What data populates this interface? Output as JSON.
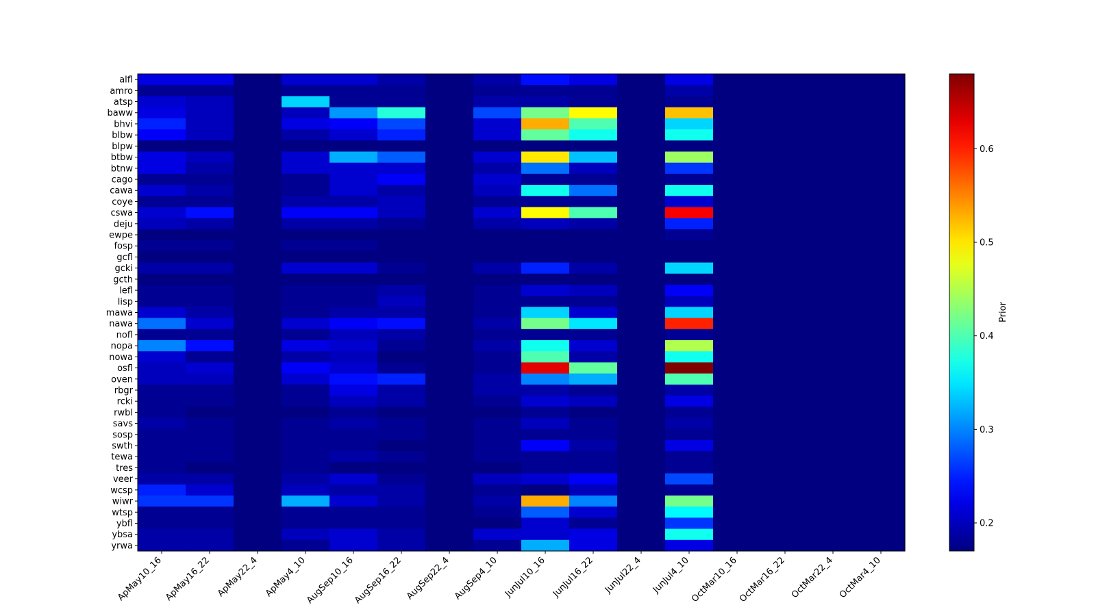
{
  "chart_data": {
    "type": "heatmap",
    "title": "",
    "xlabel": "",
    "ylabel": "",
    "colorbar": {
      "label": "Prior",
      "colormap": "jet",
      "range": [
        0.17,
        0.68
      ],
      "ticks": [
        0.2,
        0.3,
        0.4,
        0.5,
        0.6
      ],
      "tick_labels": [
        "0.2",
        "0.3",
        "0.4",
        "0.5",
        "0.6"
      ]
    },
    "columns": [
      "ApMay10_16",
      "ApMay16_22",
      "ApMay22_4",
      "ApMay4_10",
      "AugSep10_16",
      "AugSep16_22",
      "AugSep22_4",
      "AugSep4_10",
      "JunJul10_16",
      "JunJul16_22",
      "JunJul22_4",
      "JunJul4_10",
      "OctMar10_16",
      "OctMar16_22",
      "OctMar22_4",
      "OctMar4_10"
    ],
    "rows": [
      "alfl",
      "amro",
      "atsp",
      "baww",
      "bhvi",
      "blbw",
      "blpw",
      "btbw",
      "btnw",
      "cago",
      "cawa",
      "coye",
      "cswa",
      "deju",
      "ewpe",
      "fosp",
      "gcfl",
      "gcki",
      "gcth",
      "lefl",
      "lisp",
      "mawa",
      "nawa",
      "nofl",
      "nopa",
      "nowa",
      "osfl",
      "oven",
      "rbgr",
      "rcki",
      "rwbl",
      "savs",
      "sosp",
      "swth",
      "tewa",
      "tres",
      "veer",
      "wcsp",
      "wiwr",
      "wtsp",
      "ybfl",
      "ybsa",
      "yrwa"
    ],
    "values": [
      [
        0.22,
        0.22,
        0.17,
        0.21,
        0.21,
        0.19,
        0.17,
        0.19,
        0.24,
        0.22,
        0.17,
        0.22,
        0.17,
        0.17,
        0.17,
        0.17
      ],
      [
        0.18,
        0.18,
        0.17,
        0.18,
        0.18,
        0.18,
        0.17,
        0.18,
        0.18,
        0.18,
        0.17,
        0.19,
        0.17,
        0.17,
        0.17,
        0.17
      ],
      [
        0.21,
        0.2,
        0.17,
        0.34,
        0.18,
        0.18,
        0.17,
        0.19,
        0.19,
        0.18,
        0.17,
        0.18,
        0.17,
        0.17,
        0.17,
        0.17
      ],
      [
        0.22,
        0.2,
        0.17,
        0.2,
        0.31,
        0.38,
        0.17,
        0.27,
        0.42,
        0.49,
        0.17,
        0.52,
        0.17,
        0.17,
        0.17,
        0.17
      ],
      [
        0.25,
        0.2,
        0.17,
        0.22,
        0.23,
        0.27,
        0.17,
        0.21,
        0.53,
        0.4,
        0.17,
        0.34,
        0.17,
        0.17,
        0.17,
        0.17
      ],
      [
        0.23,
        0.2,
        0.17,
        0.19,
        0.21,
        0.25,
        0.17,
        0.21,
        0.41,
        0.37,
        0.17,
        0.37,
        0.17,
        0.17,
        0.17,
        0.17
      ],
      [
        0.17,
        0.17,
        0.17,
        0.17,
        0.17,
        0.17,
        0.17,
        0.17,
        0.17,
        0.17,
        0.17,
        0.17,
        0.17,
        0.17,
        0.17,
        0.17
      ],
      [
        0.22,
        0.2,
        0.17,
        0.21,
        0.32,
        0.28,
        0.17,
        0.21,
        0.5,
        0.33,
        0.17,
        0.44,
        0.17,
        0.17,
        0.17,
        0.17
      ],
      [
        0.22,
        0.19,
        0.17,
        0.21,
        0.21,
        0.21,
        0.17,
        0.19,
        0.29,
        0.2,
        0.17,
        0.26,
        0.17,
        0.17,
        0.17,
        0.17
      ],
      [
        0.18,
        0.18,
        0.17,
        0.18,
        0.21,
        0.23,
        0.17,
        0.21,
        0.18,
        0.18,
        0.17,
        0.18,
        0.17,
        0.17,
        0.17,
        0.17
      ],
      [
        0.21,
        0.19,
        0.17,
        0.18,
        0.21,
        0.19,
        0.17,
        0.2,
        0.37,
        0.29,
        0.17,
        0.37,
        0.17,
        0.17,
        0.17,
        0.17
      ],
      [
        0.18,
        0.18,
        0.17,
        0.19,
        0.19,
        0.2,
        0.17,
        0.18,
        0.18,
        0.18,
        0.17,
        0.21,
        0.17,
        0.17,
        0.17,
        0.17
      ],
      [
        0.21,
        0.24,
        0.17,
        0.23,
        0.23,
        0.2,
        0.17,
        0.21,
        0.49,
        0.4,
        0.17,
        0.62,
        0.17,
        0.17,
        0.17,
        0.17
      ],
      [
        0.2,
        0.19,
        0.17,
        0.19,
        0.19,
        0.18,
        0.17,
        0.19,
        0.2,
        0.19,
        0.17,
        0.25,
        0.17,
        0.17,
        0.17,
        0.17
      ],
      [
        0.17,
        0.17,
        0.17,
        0.17,
        0.17,
        0.17,
        0.17,
        0.17,
        0.17,
        0.17,
        0.17,
        0.18,
        0.17,
        0.17,
        0.17,
        0.17
      ],
      [
        0.18,
        0.18,
        0.17,
        0.18,
        0.18,
        0.17,
        0.17,
        0.17,
        0.17,
        0.17,
        0.17,
        0.17,
        0.17,
        0.17,
        0.17,
        0.17
      ],
      [
        0.17,
        0.17,
        0.17,
        0.17,
        0.17,
        0.17,
        0.17,
        0.17,
        0.17,
        0.17,
        0.17,
        0.17,
        0.17,
        0.17,
        0.17,
        0.17
      ],
      [
        0.19,
        0.19,
        0.17,
        0.21,
        0.21,
        0.18,
        0.17,
        0.19,
        0.25,
        0.19,
        0.17,
        0.34,
        0.17,
        0.17,
        0.17,
        0.17
      ],
      [
        0.17,
        0.17,
        0.17,
        0.17,
        0.17,
        0.17,
        0.17,
        0.17,
        0.17,
        0.17,
        0.17,
        0.17,
        0.17,
        0.17,
        0.17,
        0.17
      ],
      [
        0.18,
        0.18,
        0.17,
        0.18,
        0.18,
        0.19,
        0.17,
        0.18,
        0.21,
        0.2,
        0.17,
        0.23,
        0.17,
        0.17,
        0.17,
        0.17
      ],
      [
        0.18,
        0.18,
        0.17,
        0.18,
        0.18,
        0.2,
        0.17,
        0.18,
        0.18,
        0.18,
        0.17,
        0.2,
        0.17,
        0.17,
        0.17,
        0.17
      ],
      [
        0.21,
        0.19,
        0.17,
        0.18,
        0.19,
        0.19,
        0.17,
        0.18,
        0.34,
        0.21,
        0.17,
        0.34,
        0.17,
        0.17,
        0.17,
        0.17
      ],
      [
        0.29,
        0.21,
        0.17,
        0.21,
        0.23,
        0.24,
        0.17,
        0.19,
        0.42,
        0.35,
        0.17,
        0.6,
        0.17,
        0.17,
        0.17,
        0.17
      ],
      [
        0.18,
        0.18,
        0.17,
        0.18,
        0.2,
        0.19,
        0.17,
        0.18,
        0.18,
        0.18,
        0.17,
        0.18,
        0.17,
        0.17,
        0.17,
        0.17
      ],
      [
        0.3,
        0.24,
        0.17,
        0.22,
        0.21,
        0.18,
        0.17,
        0.19,
        0.37,
        0.21,
        0.17,
        0.45,
        0.17,
        0.17,
        0.17,
        0.17
      ],
      [
        0.21,
        0.18,
        0.17,
        0.19,
        0.2,
        0.17,
        0.17,
        0.18,
        0.4,
        0.19,
        0.17,
        0.37,
        0.17,
        0.17,
        0.17,
        0.17
      ],
      [
        0.2,
        0.21,
        0.17,
        0.23,
        0.21,
        0.18,
        0.17,
        0.18,
        0.63,
        0.41,
        0.17,
        0.68,
        0.17,
        0.17,
        0.17,
        0.17
      ],
      [
        0.2,
        0.2,
        0.17,
        0.21,
        0.24,
        0.25,
        0.17,
        0.19,
        0.3,
        0.32,
        0.17,
        0.4,
        0.17,
        0.17,
        0.17,
        0.17
      ],
      [
        0.18,
        0.18,
        0.17,
        0.18,
        0.22,
        0.19,
        0.17,
        0.19,
        0.19,
        0.18,
        0.17,
        0.19,
        0.17,
        0.17,
        0.17,
        0.17
      ],
      [
        0.18,
        0.18,
        0.17,
        0.18,
        0.2,
        0.19,
        0.17,
        0.18,
        0.21,
        0.2,
        0.17,
        0.22,
        0.17,
        0.17,
        0.17,
        0.17
      ],
      [
        0.18,
        0.17,
        0.17,
        0.17,
        0.18,
        0.17,
        0.17,
        0.17,
        0.18,
        0.17,
        0.17,
        0.18,
        0.17,
        0.17,
        0.17,
        0.17
      ],
      [
        0.19,
        0.18,
        0.17,
        0.18,
        0.19,
        0.18,
        0.17,
        0.18,
        0.2,
        0.18,
        0.17,
        0.19,
        0.17,
        0.17,
        0.17,
        0.17
      ],
      [
        0.18,
        0.18,
        0.17,
        0.18,
        0.18,
        0.18,
        0.17,
        0.18,
        0.18,
        0.18,
        0.17,
        0.18,
        0.17,
        0.17,
        0.17,
        0.17
      ],
      [
        0.18,
        0.18,
        0.17,
        0.18,
        0.18,
        0.17,
        0.17,
        0.18,
        0.23,
        0.19,
        0.17,
        0.22,
        0.17,
        0.17,
        0.17,
        0.17
      ],
      [
        0.18,
        0.18,
        0.17,
        0.18,
        0.19,
        0.18,
        0.17,
        0.18,
        0.18,
        0.18,
        0.17,
        0.18,
        0.17,
        0.17,
        0.17,
        0.17
      ],
      [
        0.18,
        0.17,
        0.17,
        0.18,
        0.17,
        0.17,
        0.17,
        0.17,
        0.18,
        0.18,
        0.17,
        0.18,
        0.17,
        0.17,
        0.17,
        0.17
      ],
      [
        0.19,
        0.19,
        0.17,
        0.19,
        0.21,
        0.18,
        0.17,
        0.2,
        0.21,
        0.23,
        0.17,
        0.27,
        0.17,
        0.17,
        0.17,
        0.17
      ],
      [
        0.25,
        0.21,
        0.17,
        0.2,
        0.19,
        0.19,
        0.17,
        0.18,
        0.17,
        0.2,
        0.17,
        0.18,
        0.17,
        0.17,
        0.17,
        0.17
      ],
      [
        0.26,
        0.26,
        0.17,
        0.32,
        0.21,
        0.19,
        0.17,
        0.19,
        0.53,
        0.3,
        0.17,
        0.42,
        0.17,
        0.17,
        0.17,
        0.17
      ],
      [
        0.18,
        0.18,
        0.17,
        0.18,
        0.18,
        0.18,
        0.17,
        0.18,
        0.28,
        0.21,
        0.17,
        0.36,
        0.17,
        0.17,
        0.17,
        0.17
      ],
      [
        0.18,
        0.18,
        0.17,
        0.18,
        0.18,
        0.18,
        0.17,
        0.17,
        0.21,
        0.18,
        0.17,
        0.26,
        0.17,
        0.17,
        0.17,
        0.17
      ],
      [
        0.19,
        0.19,
        0.17,
        0.2,
        0.21,
        0.19,
        0.17,
        0.21,
        0.21,
        0.22,
        0.17,
        0.37,
        0.17,
        0.17,
        0.17,
        0.17
      ],
      [
        0.19,
        0.19,
        0.17,
        0.18,
        0.21,
        0.19,
        0.17,
        0.18,
        0.32,
        0.22,
        0.17,
        0.22,
        0.17,
        0.17,
        0.17,
        0.17
      ]
    ]
  }
}
